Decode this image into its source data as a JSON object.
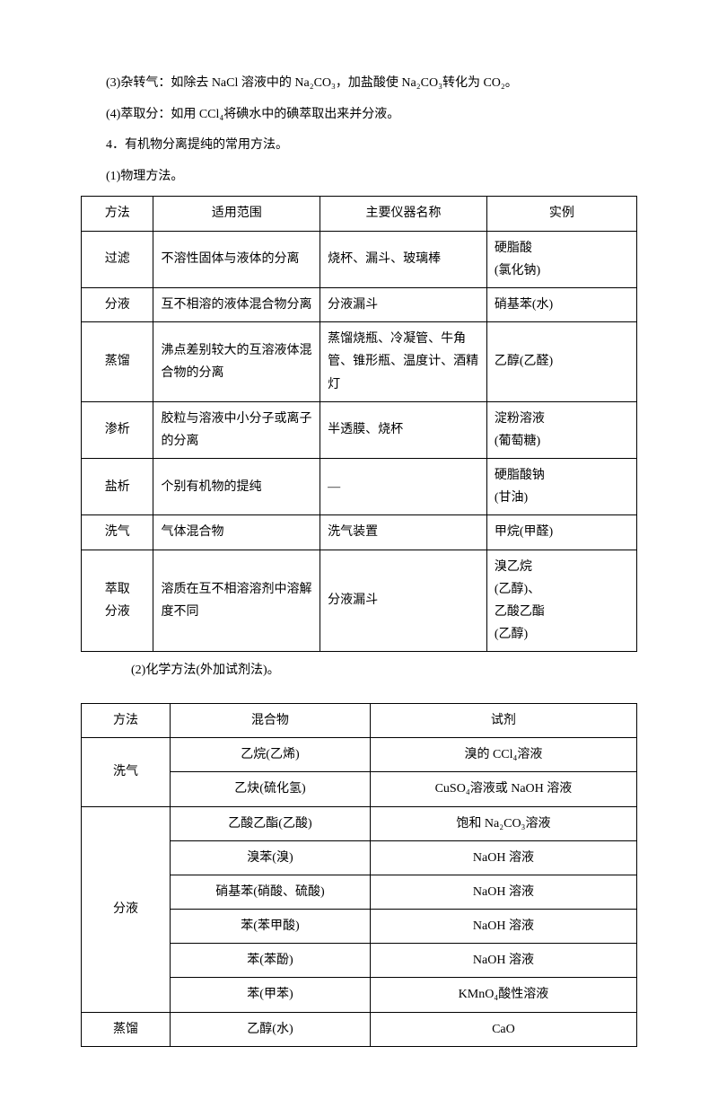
{
  "paragraphs": {
    "p3": "(3)杂转气：如除去 NaCl 溶液中的 Na₂CO₃，加盐酸使 Na₂CO₃转化为 CO₂。",
    "p4": "(4)萃取分：如用 CCl₄将碘水中的碘萃取出来并分液。",
    "p5": "4．有机物分离提纯的常用方法。",
    "p6": "(1)物理方法。",
    "p7": "(2)化学方法(外加试剂法)。"
  },
  "table1": {
    "headers": [
      "方法",
      "适用范围",
      "主要仪器名称",
      "实例"
    ],
    "rows": [
      [
        "过滤",
        "不溶性固体与液体的分离",
        "烧杯、漏斗、玻璃棒",
        "硬脂酸\n(氯化钠)"
      ],
      [
        "分液",
        "互不相溶的液体混合物分离",
        "分液漏斗",
        "硝基苯(水)"
      ],
      [
        "蒸馏",
        "沸点差别较大的互溶液体混合物的分离",
        "蒸馏烧瓶、冷凝管、牛角管、锥形瓶、温度计、酒精灯",
        "乙醇(乙醛)"
      ],
      [
        "渗析",
        "胶粒与溶液中小分子或离子的分离",
        "半透膜、烧杯",
        "淀粉溶液\n(葡萄糖)"
      ],
      [
        "盐析",
        "个别有机物的提纯",
        "—",
        "硬脂酸钠\n(甘油)"
      ],
      [
        "洗气",
        "气体混合物",
        "洗气装置",
        "甲烷(甲醛)"
      ],
      [
        "萃取\n分液",
        "溶质在互不相溶溶剂中溶解度不同",
        "分液漏斗",
        "溴乙烷\n(乙醇)、\n乙酸乙酯\n(乙醇)"
      ]
    ]
  },
  "table2": {
    "headers": [
      "方法",
      "混合物",
      "试剂"
    ],
    "groups": [
      {
        "method": "洗气",
        "rows": [
          [
            "乙烷(乙烯)",
            "溴的 CCl₄溶液"
          ],
          [
            "乙炔(硫化氢)",
            "CuSO₄溶液或 NaOH 溶液"
          ]
        ]
      },
      {
        "method": "分液",
        "rows": [
          [
            "乙酸乙酯(乙酸)",
            "饱和 Na₂CO₃溶液"
          ],
          [
            "溴苯(溴)",
            "NaOH 溶液"
          ],
          [
            "硝基苯(硝酸、硫酸)",
            "NaOH 溶液"
          ],
          [
            "苯(苯甲酸)",
            "NaOH 溶液"
          ],
          [
            "苯(苯酚)",
            "NaOH 溶液"
          ],
          [
            "苯(甲苯)",
            "KMnO₄酸性溶液"
          ]
        ]
      },
      {
        "method": "蒸馏",
        "rows": [
          [
            "乙醇(水)",
            "CaO"
          ]
        ]
      }
    ]
  }
}
